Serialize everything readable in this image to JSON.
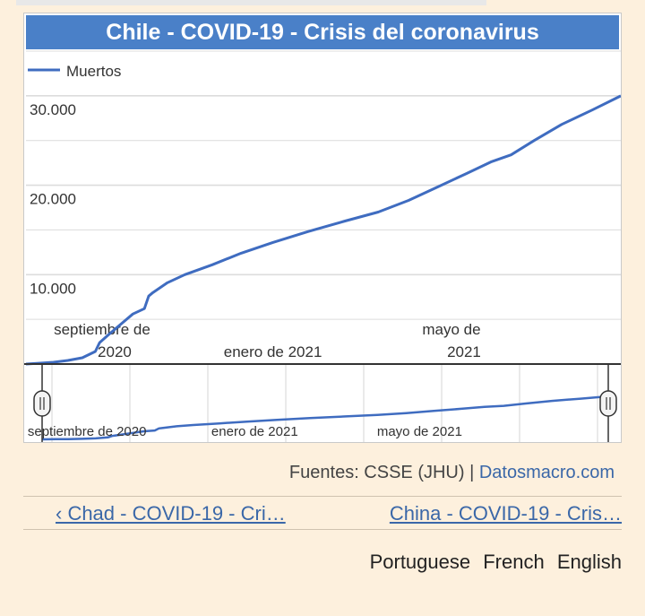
{
  "chart_data": {
    "type": "line",
    "title": "Chile - COVID-19 - Crisis del coronavirus",
    "series": [
      {
        "name": "Muertos",
        "color": "#3f6cc0",
        "points": [
          [
            "2020-07-14",
            0
          ],
          [
            "2020-07-24",
            100
          ],
          [
            "2020-08-02",
            200
          ],
          [
            "2020-08-12",
            400
          ],
          [
            "2020-08-22",
            700
          ],
          [
            "2020-08-31",
            1400
          ],
          [
            "2020-09-03",
            2400
          ],
          [
            "2020-09-10",
            3400
          ],
          [
            "2020-09-18",
            4500
          ],
          [
            "2020-09-26",
            5600
          ],
          [
            "2020-10-04",
            6200
          ],
          [
            "2020-10-07",
            7600
          ],
          [
            "2020-10-10",
            8000
          ],
          [
            "2020-10-20",
            9100
          ],
          [
            "2020-11-01",
            10000
          ],
          [
            "2020-11-20",
            11100
          ],
          [
            "2020-12-10",
            12400
          ],
          [
            "2021-01-01",
            13600
          ],
          [
            "2021-01-25",
            14800
          ],
          [
            "2021-02-20",
            16000
          ],
          [
            "2021-03-15",
            17000
          ],
          [
            "2021-04-05",
            18300
          ],
          [
            "2021-04-25",
            19800
          ],
          [
            "2021-05-15",
            21300
          ],
          [
            "2021-06-01",
            22600
          ],
          [
            "2021-06-15",
            23400
          ],
          [
            "2021-07-01",
            25000
          ],
          [
            "2021-07-20",
            26800
          ],
          [
            "2021-08-10",
            28400
          ],
          [
            "2021-08-30",
            30000
          ]
        ]
      }
    ],
    "y_ticks": [
      {
        "value": 10000,
        "label": "10.000"
      },
      {
        "value": 20000,
        "label": "20.000"
      },
      {
        "value": 30000,
        "label": "30.000"
      }
    ],
    "x_ticks": [
      {
        "date": "2020-09-01",
        "line1": "septiembre de",
        "line2": "2020"
      },
      {
        "date": "2021-01-01",
        "line1": "",
        "line2": "enero de 2021"
      },
      {
        "date": "2021-05-01",
        "line1": "mayo de",
        "line2": "2021"
      }
    ],
    "navigator_labels": [
      {
        "date": "2020-09-01",
        "label": "septiembre de 2020"
      },
      {
        "date": "2021-01-01",
        "label": "enero de 2021"
      },
      {
        "date": "2021-05-01",
        "label": "mayo de 2021"
      }
    ],
    "legend_position": "top-left",
    "grid": true
  },
  "footer": {
    "sources_prefix": "Fuentes: CSSE (JHU) | ",
    "sources_link": "Datosmacro.com"
  },
  "nav": {
    "prev": "‹ Chad - COVID-19 - Cri…",
    "next": "China - COVID-19 - Cris…"
  },
  "languages": [
    "Portuguese",
    "French",
    "English"
  ]
}
